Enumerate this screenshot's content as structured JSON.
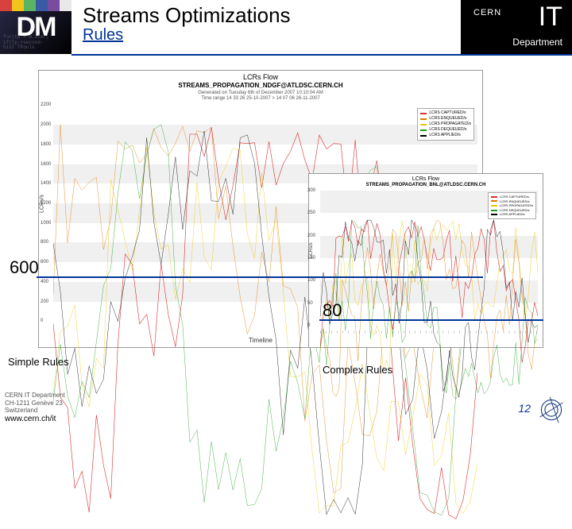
{
  "banner": {
    "dm": "DM",
    "colorbar": [
      "#d94040",
      "#f0c419",
      "#5ab463",
      "#3b5aa6",
      "#7a4ca0",
      "#e8e8e8"
    ],
    "code_lines": [
      "for(tp = m.iter;",
      "if(tp->second-",
      "hist TPools"
    ],
    "title": "Streams Optimizations",
    "subtitle": "Rules",
    "cern": "CERN",
    "it": "IT",
    "dept": "Department"
  },
  "chart_big": {
    "type": "line",
    "title": "LCRs Flow",
    "subtitle": "STREAMS_PROPAGATION_NDGF@ATLDSC.CERN.CH",
    "gen1": "Generated on Tuesday 6th of December 2007 10:10:04 AM",
    "gen2": "Time range 14 33 26 25-10-2007 > 14 07 06 26-11-2007",
    "ylabel": "LCRs/s",
    "xlabel": "Timeline",
    "ylim": [
      0,
      2200
    ],
    "yticks": [
      0,
      200,
      400,
      600,
      800,
      1000,
      1200,
      1400,
      1600,
      1800,
      2000,
      2200
    ],
    "background_color": "#ffffff",
    "grid_color": "#f0f0f0",
    "legend": [
      {
        "label": "LCRS CAPTURED/s",
        "color": "#d93030"
      },
      {
        "label": "LCRS ENQUEUED/s",
        "color": "#e07800"
      },
      {
        "label": "LCRS PROPAGATED/s",
        "color": "#e8c800"
      },
      {
        "label": "LCRS DEQUEUED/s",
        "color": "#20a020"
      },
      {
        "label": "LCRS APPLIED/s",
        "color": "#000000"
      }
    ],
    "n_points": 60,
    "series_ranges": {
      "min": 50,
      "max": 2100
    }
  },
  "chart_small": {
    "type": "line",
    "title": "LCRs Flow",
    "subtitle": "STREAMS_PROPAGATION_BNL@ATLDSC.CERN.CH",
    "ylabel": "LCRs/s",
    "ylim": [
      0,
      300
    ],
    "yticks": [
      0,
      50,
      100,
      150,
      200,
      250,
      300
    ],
    "background_color": "#ffffff",
    "grid_color": "#f0f0f0",
    "legend": [
      {
        "label": "LCRS CAPTURED/s",
        "color": "#d93030"
      },
      {
        "label": "LCRS ENQUEUED/s",
        "color": "#e07800"
      },
      {
        "label": "LCRS PROPAGATED/s",
        "color": "#e8c800"
      },
      {
        "label": "LCRS DEQUEUED/s",
        "color": "#20a020"
      },
      {
        "label": "LCRS APPLIED/s",
        "color": "#000000"
      }
    ],
    "n_points": 70,
    "series_ranges": {
      "min": 10,
      "max": 260
    }
  },
  "annotations": {
    "big_value": "600",
    "small_value": "80",
    "caption_big": "Simple Rules",
    "caption_small": "Complex Rules"
  },
  "footer": {
    "line1": "CERN IT Department",
    "line2": "CH-1211 Genève 23",
    "line3": "Switzerland",
    "site": "www.cern.ch/it",
    "page": "12"
  }
}
